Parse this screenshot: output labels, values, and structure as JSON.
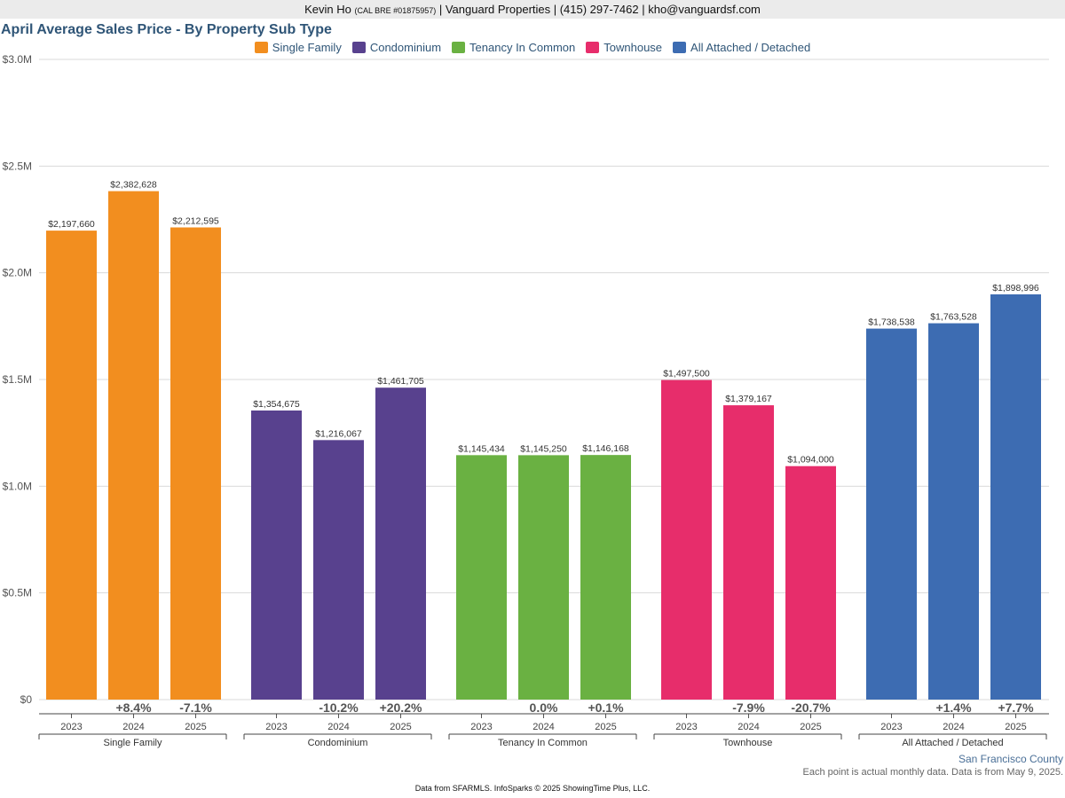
{
  "header": {
    "name": "Kevin Ho",
    "license": "(CAL BRE #01875957)",
    "rest": "| Vanguard Properties | (415) 297-7462 | kho@vanguardsf.com"
  },
  "footer": {
    "county": "San Francisco County",
    "note": "Each point is actual monthly data. Data is from May 9, 2025.",
    "source": "Data from SFARMLS. InfoSparks © 2025 ShowingTime Plus, LLC."
  },
  "chart_data": {
    "type": "bar",
    "title": "April Average Sales Price - By Property Sub Type",
    "xlabel": "",
    "ylabel": "",
    "ylim": [
      0,
      3000000
    ],
    "yticks": [
      {
        "value": 0,
        "label": "$0"
      },
      {
        "value": 500000,
        "label": "$0.5M"
      },
      {
        "value": 1000000,
        "label": "$1.0M"
      },
      {
        "value": 1500000,
        "label": "$1.5M"
      },
      {
        "value": 2000000,
        "label": "$2.0M"
      },
      {
        "value": 2500000,
        "label": "$2.5M"
      },
      {
        "value": 3000000,
        "label": "$3.0M"
      }
    ],
    "grid": true,
    "legend_position": "top-center",
    "years": [
      "2023",
      "2024",
      "2025"
    ],
    "groups": [
      {
        "name": "Single Family",
        "color": "#f28e1f",
        "values": [
          2197660,
          2382628,
          2212595
        ],
        "value_labels": [
          "$2,197,660",
          "$2,382,628",
          "$2,212,595"
        ],
        "changes": [
          "",
          "+8.4%",
          "-7.1%"
        ]
      },
      {
        "name": "Condominium",
        "color": "#58418e",
        "values": [
          1354675,
          1216067,
          1461705
        ],
        "value_labels": [
          "$1,354,675",
          "$1,216,067",
          "$1,461,705"
        ],
        "changes": [
          "",
          "-10.2%",
          "+20.2%"
        ]
      },
      {
        "name": "Tenancy In Common",
        "color": "#6ab142",
        "values": [
          1145434,
          1145250,
          1146168
        ],
        "value_labels": [
          "$1,145,434",
          "$1,145,250",
          "$1,146,168"
        ],
        "changes": [
          "",
          "0.0%",
          "+0.1%"
        ]
      },
      {
        "name": "Townhouse",
        "color": "#e72d6b",
        "values": [
          1497500,
          1379167,
          1094000
        ],
        "value_labels": [
          "$1,497,500",
          "$1,379,167",
          "$1,094,000"
        ],
        "changes": [
          "",
          "-7.9%",
          "-20.7%"
        ]
      },
      {
        "name": "All Attached / Detached",
        "color": "#3d6cb2",
        "values": [
          1738538,
          1763528,
          1898996
        ],
        "value_labels": [
          "$1,738,538",
          "$1,763,528",
          "$1,898,996"
        ],
        "changes": [
          "",
          "+1.4%",
          "+7.7%"
        ]
      }
    ]
  }
}
